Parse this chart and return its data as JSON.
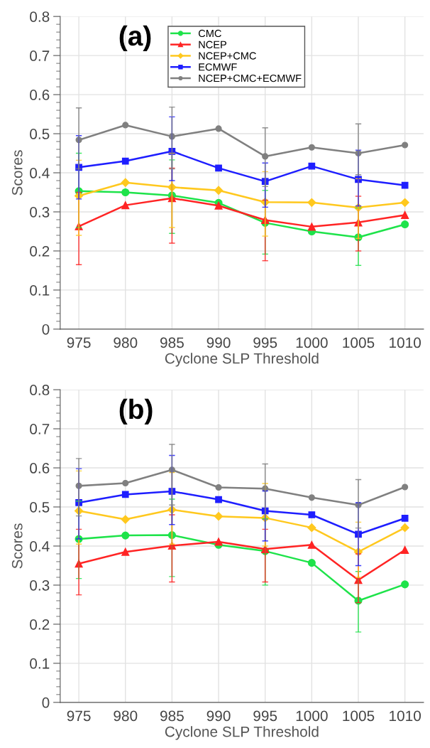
{
  "chart_data": [
    {
      "type": "line",
      "xlabel": "Cyclone SLP Threshold",
      "ylabel": "Scores",
      "annotations": [
        "(a)"
      ],
      "x": [
        975,
        980,
        985,
        990,
        995,
        1000,
        1005,
        1010
      ],
      "xlim": [
        973,
        1012
      ],
      "xticks": [
        975,
        980,
        985,
        990,
        995,
        1000,
        1005,
        1010
      ],
      "ylim": [
        0,
        0.8
      ],
      "yticks": [
        0,
        0.1,
        0.2,
        0.3,
        0.4,
        0.5,
        0.6,
        0.7,
        0.8
      ],
      "grid": true,
      "legend": "top",
      "line_style": "solid",
      "series": [
        {
          "name": "CMC",
          "color": "#1ee34a",
          "marker": "circle",
          "values": [
            0.353,
            0.35,
            0.342,
            0.323,
            0.272,
            0.25,
            0.235,
            0.268
          ],
          "errors": [
            [
              0.26,
              0.45
            ],
            null,
            [
              0.245,
              0.433
            ],
            null,
            [
              0.192,
              0.355
            ],
            null,
            [
              0.163,
              0.31
            ],
            null
          ]
        },
        {
          "name": "NCEP",
          "color": "#ff2424",
          "marker": "triangle",
          "values": [
            0.263,
            0.317,
            0.335,
            0.316,
            0.279,
            0.262,
            0.273,
            0.292
          ],
          "errors": [
            [
              0.165,
              0.35
            ],
            null,
            [
              0.22,
              0.412
            ],
            null,
            [
              0.175,
              0.33
            ],
            null,
            [
              0.2,
              0.34
            ],
            null
          ]
        },
        {
          "name": "NCEP+CMC",
          "color": "#ffc81e",
          "marker": "diamond",
          "values": [
            0.341,
            0.375,
            0.363,
            0.355,
            0.325,
            0.324,
            0.311,
            0.324
          ],
          "errors": [
            [
              0.24,
              0.432
            ],
            null,
            [
              0.26,
              0.45
            ],
            null,
            [
              0.238,
              0.403
            ],
            null,
            [
              0.232,
              0.385
            ],
            null
          ]
        },
        {
          "name": "ECMWF",
          "color": "#1e1eff",
          "marker": "square",
          "values": [
            0.414,
            0.43,
            0.455,
            0.412,
            0.378,
            0.417,
            0.383,
            0.368
          ],
          "errors": [
            [
              0.333,
              0.495
            ],
            null,
            [
              0.38,
              0.543
            ],
            null,
            [
              0.312,
              0.425
            ],
            null,
            [
              0.315,
              0.458
            ],
            null
          ]
        },
        {
          "name": "NCEP+CMC+ECMWF",
          "color": "#808080",
          "marker": "circle",
          "values": [
            0.484,
            0.522,
            0.493,
            0.513,
            0.442,
            0.465,
            0.45,
            0.471
          ],
          "errors": [
            [
              0.41,
              0.566
            ],
            null,
            [
              0.41,
              0.568
            ],
            null,
            [
              0.365,
              0.515
            ],
            null,
            [
              0.395,
              0.525
            ],
            null
          ]
        }
      ]
    },
    {
      "type": "line",
      "xlabel": "Cyclone SLP Threshold",
      "ylabel": "Scores",
      "annotations": [
        "(b)"
      ],
      "x": [
        975,
        980,
        985,
        990,
        995,
        1000,
        1005,
        1010
      ],
      "xlim": [
        973,
        1012
      ],
      "xticks": [
        975,
        980,
        985,
        990,
        995,
        1000,
        1005,
        1010
      ],
      "ylim": [
        0,
        0.8
      ],
      "yticks": [
        0,
        0.1,
        0.2,
        0.3,
        0.4,
        0.5,
        0.6,
        0.7,
        0.8
      ],
      "grid": true,
      "line_style": "solid",
      "series": [
        {
          "color": "#1ee34a",
          "marker": "circle",
          "values": [
            0.418,
            0.427,
            0.428,
            0.403,
            0.387,
            0.357,
            0.26,
            0.302
          ],
          "errors": [
            [
              0.317,
              0.515
            ],
            null,
            [
              0.322,
              0.52
            ],
            null,
            [
              0.3,
              0.47
            ],
            null,
            [
              0.18,
              0.335
            ],
            null
          ]
        },
        {
          "color": "#ff2424",
          "marker": "triangle",
          "values": [
            0.355,
            0.385,
            0.401,
            0.411,
            0.392,
            0.403,
            0.313,
            0.39
          ],
          "errors": [
            [
              0.275,
              0.443
            ],
            null,
            [
              0.308,
              0.48
            ],
            null,
            [
              0.308,
              0.443
            ],
            null,
            [
              0.255,
              0.38
            ],
            null
          ]
        },
        {
          "color": "#ffc81e",
          "marker": "diamond",
          "values": [
            0.49,
            0.468,
            0.493,
            0.476,
            0.472,
            0.447,
            0.385,
            0.447
          ],
          "errors": [
            [
              0.405,
              0.592
            ],
            null,
            [
              0.405,
              0.588
            ],
            null,
            [
              0.4,
              0.56
            ],
            null,
            [
              0.32,
              0.461
            ],
            null
          ]
        },
        {
          "color": "#1e1eff",
          "marker": "square",
          "values": [
            0.511,
            0.532,
            0.54,
            0.519,
            0.49,
            0.48,
            0.43,
            0.471
          ],
          "errors": [
            [
              0.418,
              0.598
            ],
            null,
            [
              0.455,
              0.632
            ],
            null,
            [
              0.413,
              0.541
            ],
            null,
            [
              0.35,
              0.511
            ],
            null
          ]
        },
        {
          "color": "#808080",
          "marker": "circle",
          "values": [
            0.554,
            0.561,
            0.595,
            0.55,
            0.547,
            0.524,
            0.505,
            0.551
          ],
          "errors": [
            [
              0.477,
              0.624
            ],
            null,
            [
              0.505,
              0.66
            ],
            null,
            [
              0.468,
              0.61
            ],
            null,
            [
              0.446,
              0.57
            ],
            null
          ]
        }
      ]
    }
  ]
}
